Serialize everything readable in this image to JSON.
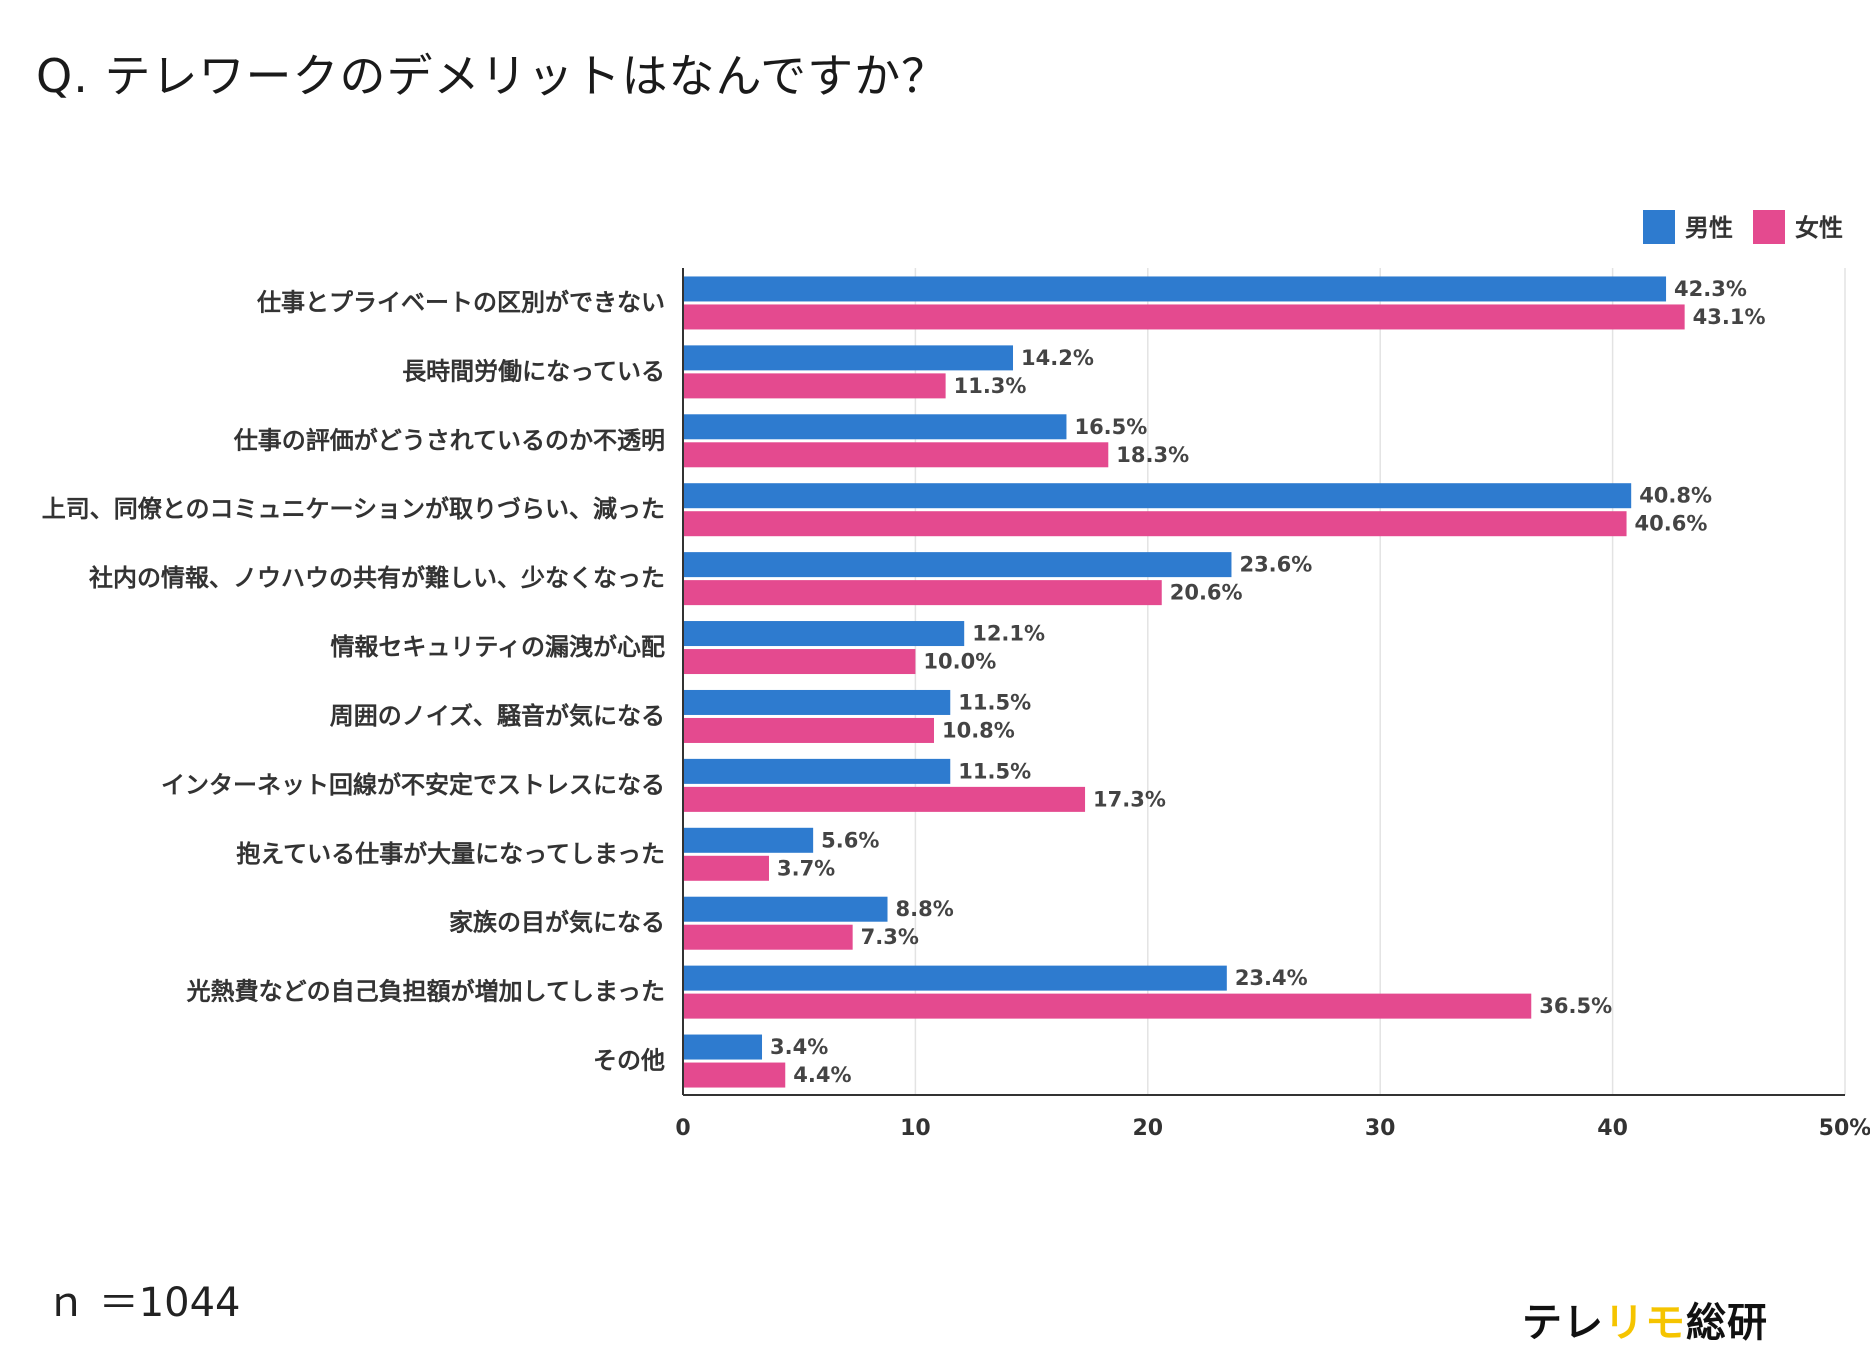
{
  "title": "Q. テレワークのデメリットはなんですか？",
  "sample_size": "ｎ ＝1044",
  "logo": {
    "part1": "テレ",
    "part2": "リモ",
    "part3": "総研"
  },
  "colors": {
    "male": "#2e7bcf",
    "female": "#e44a8f",
    "logo_accent": "#f5c400"
  },
  "chart_data": {
    "type": "bar",
    "orientation": "horizontal",
    "categories": [
      "仕事とプライベートの区別ができない",
      "長時間労働になっている",
      "仕事の評価がどうされているのか不透明",
      "上司、同僚とのコミュニケーションが取りづらい、減った",
      "社内の情報、ノウハウの共有が難しい、少なくなった",
      "情報セキュリティの漏洩が心配",
      "周囲のノイズ、騒音が気になる",
      "インターネット回線が不安定でストレスになる",
      "抱えている仕事が大量になってしまった",
      "家族の目が気になる",
      "光熱費などの自己負担額が増加してしまった",
      "その他"
    ],
    "series": [
      {
        "name": "男性",
        "values": [
          42.3,
          14.2,
          16.5,
          40.8,
          23.6,
          12.1,
          11.5,
          11.5,
          5.6,
          8.8,
          23.4,
          3.4
        ]
      },
      {
        "name": "女性",
        "values": [
          43.1,
          11.3,
          18.3,
          40.6,
          20.6,
          10.0,
          10.8,
          17.3,
          3.7,
          7.3,
          36.5,
          4.4
        ]
      }
    ],
    "xlim": [
      0,
      50
    ],
    "xticks": [
      "0",
      "10",
      "20",
      "30",
      "40",
      "50%"
    ],
    "value_suffix": "%",
    "legend_position": "top-right",
    "grid": true
  }
}
